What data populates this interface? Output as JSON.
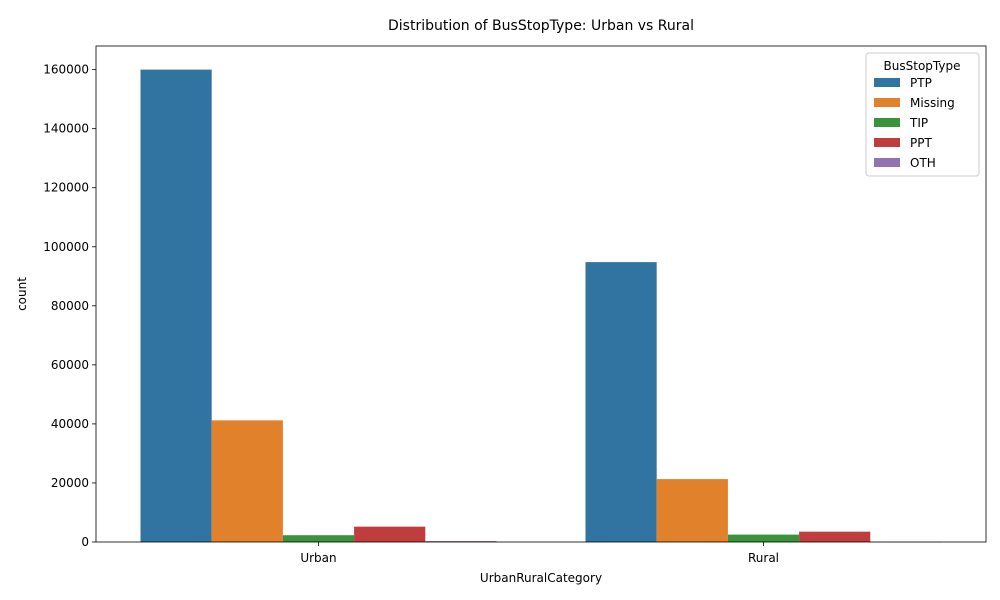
{
  "chart_data": {
    "type": "bar",
    "title": "Distribution of BusStopType: Urban vs Rural",
    "xlabel": "UrbanRuralCategory",
    "ylabel": "count",
    "categories": [
      "Urban",
      "Rural"
    ],
    "ylim": [
      0,
      168000
    ],
    "yticks": [
      0,
      20000,
      40000,
      60000,
      80000,
      100000,
      120000,
      140000,
      160000
    ],
    "legend": {
      "title": "BusStopType",
      "position": "top-right"
    },
    "grid": false,
    "series": [
      {
        "name": "PTP",
        "color": "#3274a1",
        "values": [
          160000,
          94800
        ]
      },
      {
        "name": "Missing",
        "color": "#e1812c",
        "values": [
          41200,
          21300
        ]
      },
      {
        "name": "TIP",
        "color": "#3a923a",
        "values": [
          2300,
          2500
        ]
      },
      {
        "name": "PPT",
        "color": "#c03d3e",
        "values": [
          5200,
          3500
        ]
      },
      {
        "name": "OTH",
        "color": "#9372b2",
        "values": [
          300,
          50
        ]
      }
    ]
  }
}
